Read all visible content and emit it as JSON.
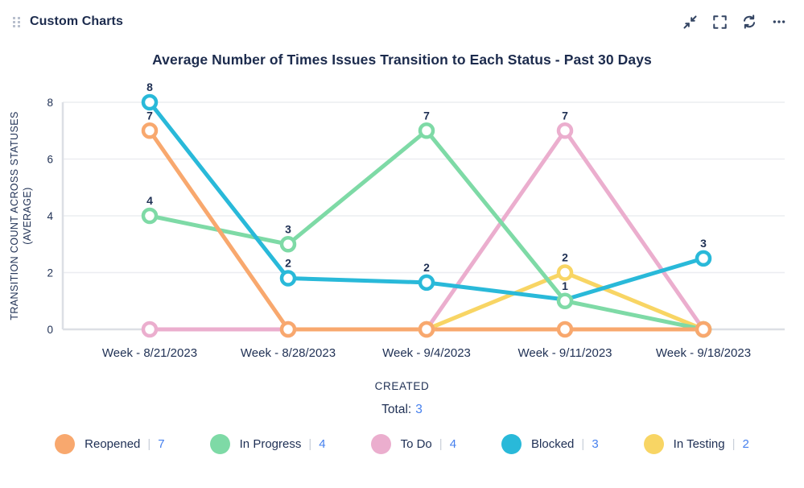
{
  "header": {
    "title": "Custom Charts",
    "icons": [
      {
        "name": "drag-handle-icon"
      },
      {
        "name": "collapse-icon"
      },
      {
        "name": "fullscreen-icon"
      },
      {
        "name": "refresh-icon"
      },
      {
        "name": "more-icon"
      }
    ]
  },
  "chart_data": {
    "type": "line",
    "title": "Average Number of Times Issues Transition to Each Status - Past 30 Days",
    "x_label": "CREATED",
    "y_label_lines": [
      "TRANSITION COUNT ACROSS STATUSES",
      "(AVERAGE)"
    ],
    "categories": [
      "Week - 8/21/2023",
      "Week - 8/28/2023",
      "Week - 9/4/2023",
      "Week - 9/11/2023",
      "Week - 9/18/2023"
    ],
    "y_ticks": [
      0,
      2,
      4,
      6,
      8
    ],
    "ylim": [
      0,
      8
    ],
    "grid": true,
    "legend_position": "bottom",
    "series": [
      {
        "name": "Reopened",
        "color": "#F8A86E",
        "legend_count": "7",
        "values": [
          7,
          0,
          0,
          0,
          0
        ],
        "point_labels": [
          "7",
          "",
          "",
          "",
          ""
        ]
      },
      {
        "name": "In Progress",
        "color": "#7EDAA6",
        "legend_count": "4",
        "values": [
          4,
          3,
          7,
          1,
          0
        ],
        "point_labels": [
          "4",
          "3",
          "7",
          "1",
          ""
        ]
      },
      {
        "name": "To Do",
        "color": "#EBAECE",
        "legend_count": "4",
        "values": [
          0,
          0,
          0,
          7,
          0
        ],
        "point_labels": [
          "",
          "",
          "",
          "7",
          ""
        ]
      },
      {
        "name": "Blocked",
        "color": "#29B9D9",
        "legend_count": "3",
        "values": [
          8,
          1.8,
          1.65,
          1.05,
          2.5
        ],
        "point_labels": [
          "8",
          "2",
          "2",
          "",
          "3"
        ],
        "hidden_markers": [
          3
        ]
      },
      {
        "name": "In Testing",
        "color": "#F8D564",
        "legend_count": "2",
        "values": [
          null,
          null,
          0,
          2,
          0
        ],
        "point_labels": [
          "",
          "",
          "",
          "2",
          ""
        ]
      }
    ]
  },
  "footer": {
    "total_label": "Total:",
    "total_value": "3"
  },
  "legend": {
    "separator": "|"
  },
  "colors": {
    "text_navy": "#1F3054",
    "title_navy": "#1C2B4D",
    "value_blue": "#4680EE",
    "gridline": "#ECEDF1",
    "axis_line": "#DCDFE5",
    "icon": "#344563"
  }
}
